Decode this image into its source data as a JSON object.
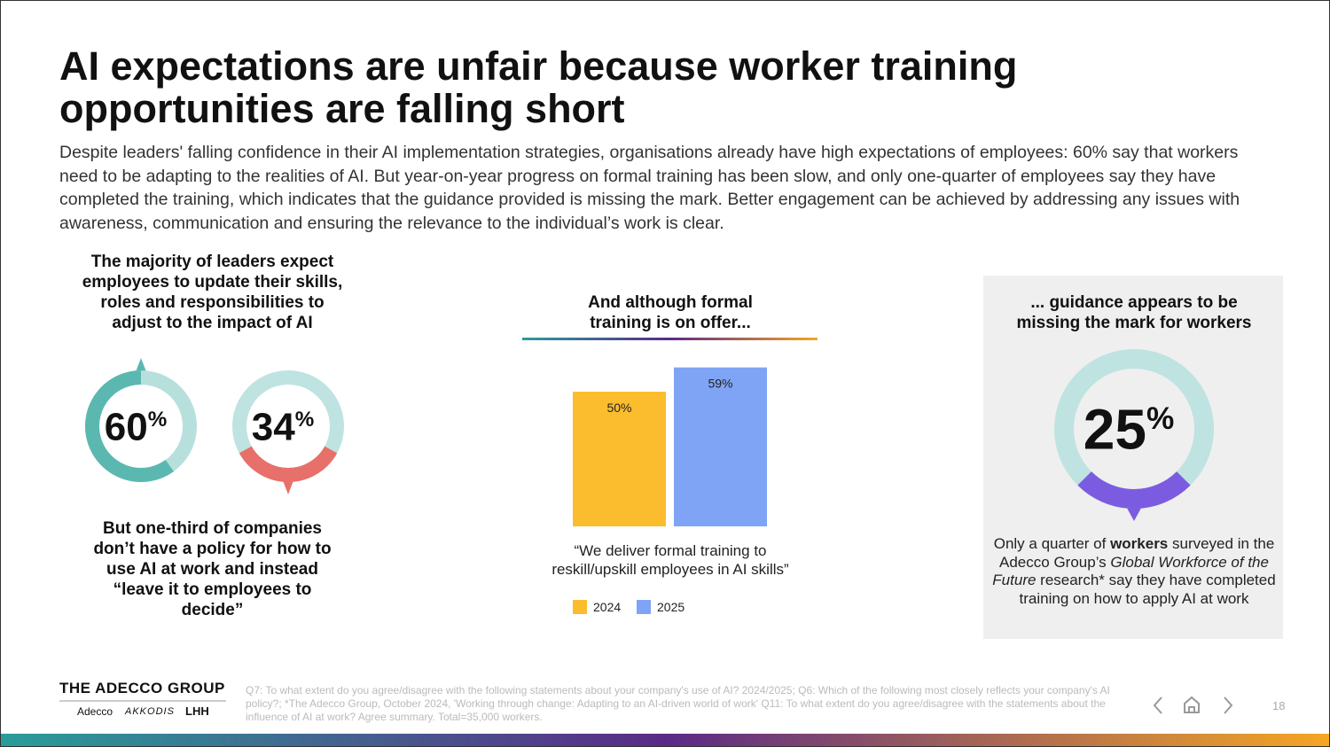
{
  "header": {
    "title": "AI expectations are unfair because worker training opportunities are falling short",
    "body": "Despite leaders' falling confidence in their AI implementation strategies, organisations already have high expectations of employees: 60% say that workers need to be adapting to the realities of AI. But year-on-year progress on formal training has been slow, and only one-quarter of employees say they have completed the training, which indicates that the guidance provided is missing the mark. Better engagement can be achieved by addressing any issues with awareness, communication and ensuring the relevance to the individual’s work is clear."
  },
  "left": {
    "heading": "The majority of leaders expect employees to update their skills, roles and responsibilities to adjust to the impact of AI",
    "donuts": [
      {
        "value": 60,
        "label": "60",
        "unit": "%",
        "color": "#5bb8b0"
      },
      {
        "value": 34,
        "label": "34",
        "unit": "%",
        "color": "#e8706a"
      }
    ],
    "text": "But one-third of companies don’t have a policy for how to use AI at work and instead “leave it to employees to decide”"
  },
  "chart_data": {
    "type": "bar",
    "title": "And although formal training is on offer...",
    "categories": [
      null
    ],
    "series": [
      {
        "name": "2024",
        "color": "#fbbd2e",
        "values": [
          50
        ],
        "value_labels": [
          "50%"
        ]
      },
      {
        "name": "2025",
        "color": "#7fa4f5",
        "values": [
          59
        ],
        "value_labels": [
          "59%"
        ]
      }
    ],
    "caption": "“We deliver formal training to reskill/upskill employees in AI skills”"
  },
  "right": {
    "heading": "... guidance appears to be missing the mark for workers",
    "donut": {
      "value": 25,
      "label": "25",
      "unit": "%",
      "color": "#7b5ce0"
    },
    "text": [
      "Only a quarter of ",
      "workers",
      " surveyed in the Adecco Group’s ",
      "Global Workforce of the Future",
      " research* say they have completed training on how to apply AI at work"
    ]
  },
  "footer": {
    "brand": "THE ADECCO GROUP",
    "logos": [
      "Adecco",
      "AKKODIS",
      "LHH"
    ],
    "note": "Q7: To what extent do you agree/disagree with the following statements about your company's use of AI? 2024/2025; Q6: Which of the following most closely reflects your company's AI policy?; *The Adecco Group, October 2024, 'Working through change: Adapting to an AI-driven world of work' Q11: To what extent do you agree/disagree with the statements about the influence of AI at work? Agree summary. Total=35,000 workers.",
    "page": "18"
  }
}
